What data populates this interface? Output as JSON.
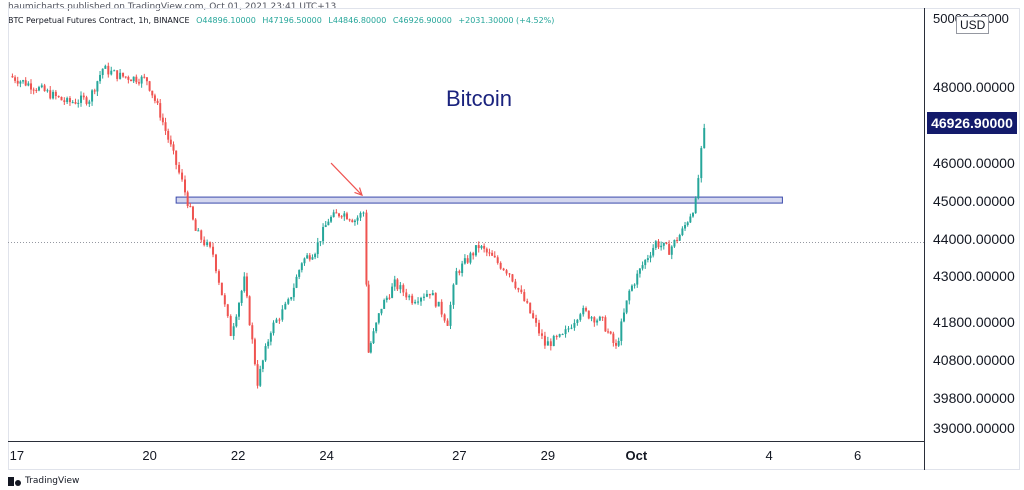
{
  "publish_line": "haumicharts published on TradingView.com, Oct 01, 2021 23:41 UTC+13",
  "header": {
    "symbol": "BTC Perpetual Futures Contract, 1h, BINANCE",
    "open": "O44896.10000",
    "high": "H47196.50000",
    "low": "L44846.80000",
    "close": "C46926.90000",
    "change": "+2031.30000 (+4.52%)"
  },
  "currency": "USD",
  "top_tick": "50000.00000",
  "last_price": "46926.90000",
  "brand": "TradingView",
  "colors": {
    "up": "#26a69a",
    "down": "#ef5350",
    "accent": "#1a237e",
    "zone_fill": "#c5cae9",
    "zone_stroke": "#3949ab",
    "arrow": "#ef5350"
  },
  "chart_data": {
    "type": "candlestick",
    "title": "",
    "symbol": "BTC Perpetual Futures Contract",
    "interval": "1h",
    "exchange": "BINANCE",
    "price_ticks": [
      "48000.00000",
      "46000.00000",
      "45000.00000",
      "44000.00000",
      "43000.00000",
      "41800.00000",
      "40800.00000",
      "39800.00000",
      "39000.00000"
    ],
    "price_tick_values": [
      48000,
      46000,
      45000,
      44000,
      43000,
      41800,
      40800,
      39800,
      39000
    ],
    "date_ticks": [
      "17",
      "20",
      "22",
      "24",
      "27",
      "29",
      "Oct",
      "4",
      "6"
    ],
    "date_tick_days": [
      17,
      20,
      22,
      24,
      27,
      29,
      31,
      34,
      36
    ],
    "ylim": [
      38650,
      50100
    ],
    "xlim": [
      16.8,
      37.5
    ],
    "x_unit": "day of Sept 2021 (Oct 1 = 31)",
    "annotation": "Bitcoin",
    "resistance_zone": {
      "y_low": 44950,
      "y_high": 45100,
      "x_start": 20.6,
      "x_end": 34.3
    },
    "dotted_level": 43900,
    "arrow": {
      "from": [
        24.1,
        46000
      ],
      "to": [
        24.8,
        45150
      ]
    },
    "path_points": [
      [
        16.9,
        48300
      ],
      [
        17.5,
        48000
      ],
      [
        18.2,
        47600
      ],
      [
        18.7,
        47700
      ],
      [
        19.0,
        48500
      ],
      [
        19.4,
        48300
      ],
      [
        20.0,
        48200
      ],
      [
        20.3,
        47300
      ],
      [
        20.6,
        46200
      ],
      [
        20.8,
        45500
      ],
      [
        21.1,
        44200
      ],
      [
        21.5,
        43600
      ],
      [
        21.9,
        41500
      ],
      [
        22.2,
        42900
      ],
      [
        22.5,
        40200
      ],
      [
        22.8,
        41600
      ],
      [
        23.2,
        42300
      ],
      [
        23.5,
        43400
      ],
      [
        23.8,
        43700
      ],
      [
        24.1,
        44500
      ],
      [
        24.4,
        44700
      ],
      [
        24.7,
        44500
      ],
      [
        24.9,
        44700
      ],
      [
        25.0,
        41000
      ],
      [
        25.3,
        42200
      ],
      [
        25.6,
        42800
      ],
      [
        26.0,
        42400
      ],
      [
        26.4,
        42600
      ],
      [
        26.8,
        41800
      ],
      [
        27.0,
        43100
      ],
      [
        27.5,
        43800
      ],
      [
        27.8,
        43500
      ],
      [
        28.2,
        43100
      ],
      [
        28.6,
        42200
      ],
      [
        29.0,
        41200
      ],
      [
        29.4,
        41400
      ],
      [
        29.8,
        42100
      ],
      [
        30.3,
        41800
      ],
      [
        30.6,
        41100
      ],
      [
        30.9,
        42600
      ],
      [
        31.2,
        43300
      ],
      [
        31.5,
        43900
      ],
      [
        31.8,
        43700
      ],
      [
        32.1,
        44200
      ],
      [
        32.4,
        44950
      ],
      [
        32.6,
        46926.9
      ]
    ]
  }
}
